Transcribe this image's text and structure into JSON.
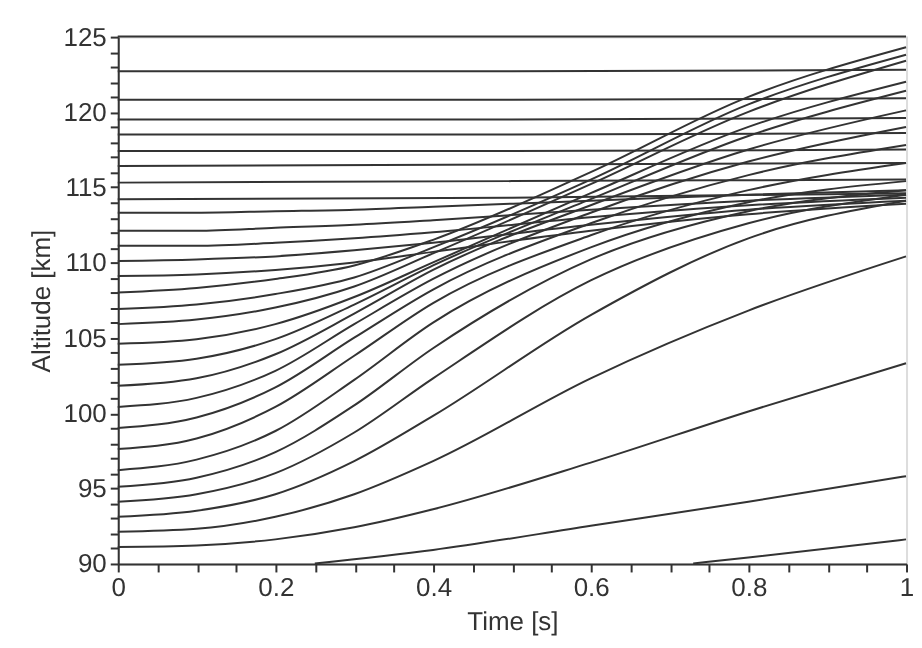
{
  "chart_data": {
    "type": "line",
    "xlabel": "Time [s]",
    "ylabel": "Altitude [km]",
    "xlim": [
      0,
      1
    ],
    "ylim": [
      90,
      125
    ],
    "xticks": [
      0,
      {
        "value": 0.05,
        "label": null
      },
      {
        "value": 0.1,
        "label": null
      },
      {
        "value": 0.15,
        "label": null
      },
      0.2,
      {
        "value": 0.25,
        "label": null
      },
      {
        "value": 0.3,
        "label": null
      },
      {
        "value": 0.35,
        "label": null
      },
      0.4,
      {
        "value": 0.45,
        "label": null
      },
      {
        "value": 0.5,
        "label": null
      },
      {
        "value": 0.55,
        "label": null
      },
      0.6,
      {
        "value": 0.65,
        "label": null
      },
      {
        "value": 0.7,
        "label": null
      },
      {
        "value": 0.75,
        "label": null
      },
      0.8,
      {
        "value": 0.85,
        "label": null
      },
      {
        "value": 0.9,
        "label": null
      },
      {
        "value": 0.95,
        "label": null
      },
      1
    ],
    "yticks": [
      90,
      {
        "value": 91,
        "label": null
      },
      {
        "value": 92,
        "label": null
      },
      {
        "value": 93,
        "label": null
      },
      {
        "value": 94,
        "label": null
      },
      95,
      {
        "value": 96,
        "label": null
      },
      {
        "value": 97,
        "label": null
      },
      {
        "value": 98,
        "label": null
      },
      {
        "value": 99,
        "label": null
      },
      100,
      {
        "value": 101,
        "label": null
      },
      {
        "value": 102,
        "label": null
      },
      {
        "value": 103,
        "label": null
      },
      {
        "value": 104,
        "label": null
      },
      105,
      {
        "value": 106,
        "label": null
      },
      {
        "value": 107,
        "label": null
      },
      {
        "value": 108,
        "label": null
      },
      {
        "value": 109,
        "label": null
      },
      110,
      {
        "value": 111,
        "label": null
      },
      {
        "value": 112,
        "label": null
      },
      {
        "value": 113,
        "label": null
      },
      {
        "value": 114,
        "label": null
      },
      115,
      {
        "value": 116,
        "label": null
      },
      {
        "value": 117,
        "label": null
      },
      {
        "value": 118,
        "label": null
      },
      {
        "value": 119,
        "label": null
      },
      120,
      {
        "value": 121,
        "label": null
      },
      {
        "value": 122,
        "label": null
      },
      {
        "value": 123,
        "label": null
      },
      {
        "value": 124,
        "label": null
      },
      125
    ],
    "grid": false,
    "legend": false,
    "marker": "none",
    "line_style": "solid",
    "x": [
      0,
      0.1,
      0.2,
      0.3,
      0.4,
      0.6,
      0.8,
      1
    ],
    "series": [
      {
        "color": "#333333",
        "x": [
          0,
          0.5,
          1
        ],
        "values": [
          125.0,
          125.0,
          125.0
        ]
      },
      {
        "color": "#333333",
        "x": [
          0,
          0.5,
          1
        ],
        "values": [
          122.7,
          122.7,
          122.8
        ]
      },
      {
        "color": "#333333",
        "x": [
          0,
          0.5,
          1
        ],
        "values": [
          120.8,
          120.8,
          120.9
        ]
      },
      {
        "color": "#333333",
        "x": [
          0,
          0.5,
          1
        ],
        "values": [
          119.5,
          119.5,
          119.6
        ]
      },
      {
        "color": "#333333",
        "x": [
          0,
          0.5,
          1
        ],
        "values": [
          118.5,
          118.5,
          118.6
        ]
      },
      {
        "color": "#333333",
        "x": [
          0,
          0.5,
          1
        ],
        "values": [
          117.4,
          117.4,
          117.5
        ]
      },
      {
        "color": "#333333",
        "x": [
          0,
          0.5,
          1
        ],
        "values": [
          116.4,
          116.5,
          116.6
        ]
      },
      {
        "color": "#333333",
        "x": [
          0,
          0.5,
          1
        ],
        "values": [
          115.3,
          115.4,
          115.5
        ]
      },
      {
        "color": "#333333",
        "x": [
          0,
          0.5,
          1
        ],
        "values": [
          114.2,
          114.3,
          114.6
        ]
      },
      {
        "color": "#333333",
        "values": [
          113.3,
          113.3,
          113.4,
          113.5,
          113.7,
          114.1,
          114.5,
          114.8
        ]
      },
      {
        "color": "#333333",
        "values": [
          112.1,
          112.1,
          112.3,
          112.5,
          112.8,
          113.5,
          114.1,
          114.5
        ]
      },
      {
        "color": "#333333",
        "values": [
          111.1,
          111.1,
          111.3,
          111.6,
          112.0,
          113.0,
          113.8,
          114.3
        ]
      },
      {
        "color": "#333333",
        "values": [
          110.1,
          110.2,
          110.4,
          110.8,
          111.3,
          112.5,
          113.5,
          114.1
        ]
      },
      {
        "color": "#333333",
        "values": [
          109.1,
          109.2,
          109.5,
          110.0,
          110.7,
          112.1,
          113.2,
          113.9
        ]
      },
      {
        "color": "#333333",
        "values": [
          108.0,
          108.3,
          108.9,
          109.8,
          111.5,
          116.0,
          121.0,
          124.3
        ]
      },
      {
        "color": "#333333",
        "values": [
          106.9,
          107.2,
          107.9,
          109.0,
          111.0,
          115.5,
          120.5,
          123.8
        ]
      },
      {
        "color": "#333333",
        "values": [
          105.9,
          106.2,
          107.0,
          108.4,
          110.6,
          115.2,
          120.0,
          123.4
        ]
      },
      {
        "color": "#333333",
        "values": [
          104.6,
          104.9,
          105.9,
          107.7,
          110.0,
          114.6,
          119.0,
          122.0
        ]
      },
      {
        "color": "#333333",
        "values": [
          103.2,
          103.6,
          104.9,
          107.2,
          109.8,
          114.2,
          118.4,
          121.4
        ]
      },
      {
        "color": "#333333",
        "values": [
          101.8,
          102.3,
          103.9,
          106.6,
          109.5,
          113.8,
          117.5,
          120.1
        ]
      },
      {
        "color": "#333333",
        "values": [
          100.4,
          101.0,
          102.8,
          105.9,
          108.9,
          113.3,
          116.7,
          119.0
        ]
      },
      {
        "color": "#333333",
        "values": [
          99.0,
          99.7,
          101.7,
          105.0,
          108.2,
          112.6,
          115.8,
          117.8
        ]
      },
      {
        "color": "#333333",
        "values": [
          97.6,
          98.3,
          100.4,
          103.8,
          107.3,
          111.8,
          114.8,
          116.6
        ]
      },
      {
        "color": "#333333",
        "values": [
          96.2,
          96.9,
          98.8,
          102.2,
          106.0,
          111.0,
          114.0,
          115.4
        ]
      },
      {
        "color": "#333333",
        "values": [
          95.1,
          95.7,
          97.4,
          100.5,
          104.3,
          110.2,
          113.4,
          114.8
        ]
      },
      {
        "color": "#333333",
        "values": [
          94.1,
          94.6,
          96.0,
          98.7,
          102.3,
          108.8,
          112.6,
          114.5
        ]
      },
      {
        "color": "#333333",
        "values": [
          93.1,
          93.5,
          94.6,
          96.8,
          99.8,
          106.5,
          111.6,
          114.1
        ]
      },
      {
        "color": "#333333",
        "values": [
          92.1,
          92.3,
          93.1,
          94.6,
          96.8,
          102.3,
          106.8,
          110.4
        ]
      },
      {
        "color": "#333333",
        "values": [
          91.1,
          91.2,
          91.6,
          92.4,
          93.6,
          96.7,
          100.1,
          103.3
        ]
      },
      {
        "color": "#333333",
        "x": [
          0.25,
          0.4,
          0.6,
          0.8,
          1
        ],
        "values": [
          90.0,
          90.9,
          92.5,
          94.1,
          95.8
        ]
      },
      {
        "color": "#333333",
        "x": [
          0.73,
          0.8,
          1
        ],
        "values": [
          90.0,
          90.4,
          91.6
        ]
      }
    ]
  }
}
